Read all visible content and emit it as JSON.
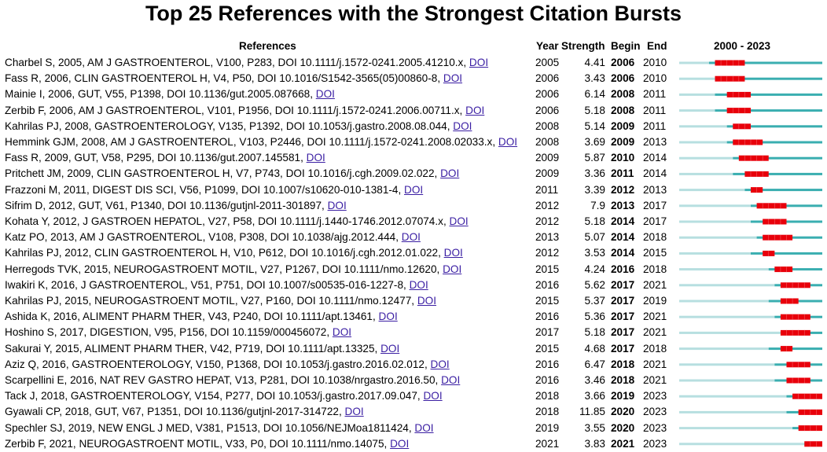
{
  "chart_data": {
    "type": "table",
    "title": "Top 25 References with the Strongest Citation Bursts",
    "headers": {
      "references": "References",
      "year": "Year",
      "strength": "Strength",
      "begin": "Begin",
      "end": "End",
      "range": "2000 - 2023"
    },
    "timeline_range": [
      2000,
      2023
    ],
    "colors": {
      "burst": "#e8000b",
      "active": "#3aaeb0",
      "before": "#b7dfe0"
    },
    "rows": [
      {
        "ref": "Charbel S, 2005, AM J GASTROENTEROL, V100, P283, DOI 10.1111/j.1572-0241.2005.41210.x, ",
        "doi": "DOI",
        "year": 2005,
        "strength": "4.41",
        "begin": 2006,
        "end": 2010
      },
      {
        "ref": "Fass R, 2006, CLIN GASTROENTEROL H, V4, P50, DOI 10.1016/S1542-3565(05)00860-8, ",
        "doi": "DOI",
        "year": 2006,
        "strength": "3.43",
        "begin": 2006,
        "end": 2010
      },
      {
        "ref": "Mainie I, 2006, GUT, V55, P1398, DOI 10.1136/gut.2005.087668, ",
        "doi": "DOI",
        "year": 2006,
        "strength": "6.14",
        "begin": 2008,
        "end": 2011
      },
      {
        "ref": "Zerbib F, 2006, AM J GASTROENTEROL, V101, P1956, DOI 10.1111/j.1572-0241.2006.00711.x, ",
        "doi": "DOI",
        "year": 2006,
        "strength": "5.18",
        "begin": 2008,
        "end": 2011
      },
      {
        "ref": "Kahrilas PJ, 2008, GASTROENTEROLOGY, V135, P1392, DOI 10.1053/j.gastro.2008.08.044, ",
        "doi": "DOI",
        "year": 2008,
        "strength": "5.14",
        "begin": 2009,
        "end": 2011
      },
      {
        "ref": "Hemmink GJM, 2008, AM J GASTROENTEROL, V103, P2446, DOI 10.1111/j.1572-0241.2008.02033.x, ",
        "doi": "DOI",
        "year": 2008,
        "strength": "3.69",
        "begin": 2009,
        "end": 2013
      },
      {
        "ref": "Fass R, 2009, GUT, V58, P295, DOI 10.1136/gut.2007.145581, ",
        "doi": "DOI",
        "year": 2009,
        "strength": "5.87",
        "begin": 2010,
        "end": 2014
      },
      {
        "ref": "Pritchett JM, 2009, CLIN GASTROENTEROL H, V7, P743, DOI 10.1016/j.cgh.2009.02.022, ",
        "doi": "DOI",
        "year": 2009,
        "strength": "3.36",
        "begin": 2011,
        "end": 2014
      },
      {
        "ref": "Frazzoni M, 2011, DIGEST DIS SCI, V56, P1099, DOI 10.1007/s10620-010-1381-4, ",
        "doi": "DOI",
        "year": 2011,
        "strength": "3.39",
        "begin": 2012,
        "end": 2013
      },
      {
        "ref": "Sifrim D, 2012, GUT, V61, P1340, DOI 10.1136/gutjnl-2011-301897, ",
        "doi": "DOI",
        "year": 2012,
        "strength": "7.9",
        "begin": 2013,
        "end": 2017
      },
      {
        "ref": "Kohata Y, 2012, J GASTROEN HEPATOL, V27, P58, DOI 10.1111/j.1440-1746.2012.07074.x, ",
        "doi": "DOI",
        "year": 2012,
        "strength": "5.18",
        "begin": 2014,
        "end": 2017
      },
      {
        "ref": "Katz PO, 2013, AM J GASTROENTEROL, V108, P308, DOI 10.1038/ajg.2012.444, ",
        "doi": "DOI",
        "year": 2013,
        "strength": "5.07",
        "begin": 2014,
        "end": 2018
      },
      {
        "ref": "Kahrilas PJ, 2012, CLIN GASTROENTEROL H, V10, P612, DOI 10.1016/j.cgh.2012.01.022, ",
        "doi": "DOI",
        "year": 2012,
        "strength": "3.53",
        "begin": 2014,
        "end": 2015
      },
      {
        "ref": "Herregods TVK, 2015, NEUROGASTROENT MOTIL, V27, P1267, DOI 10.1111/nmo.12620, ",
        "doi": "DOI",
        "year": 2015,
        "strength": "4.24",
        "begin": 2016,
        "end": 2018
      },
      {
        "ref": "Iwakiri K, 2016, J GASTROENTEROL, V51, P751, DOI 10.1007/s00535-016-1227-8, ",
        "doi": "DOI",
        "year": 2016,
        "strength": "5.62",
        "begin": 2017,
        "end": 2021
      },
      {
        "ref": "Kahrilas PJ, 2015, NEUROGASTROENT MOTIL, V27, P160, DOI 10.1111/nmo.12477, ",
        "doi": "DOI",
        "year": 2015,
        "strength": "5.37",
        "begin": 2017,
        "end": 2019
      },
      {
        "ref": "Ashida K, 2016, ALIMENT PHARM THER, V43, P240, DOI 10.1111/apt.13461, ",
        "doi": "DOI",
        "year": 2016,
        "strength": "5.36",
        "begin": 2017,
        "end": 2021
      },
      {
        "ref": "Hoshino S, 2017, DIGESTION, V95, P156, DOI 10.1159/000456072, ",
        "doi": "DOI",
        "year": 2017,
        "strength": "5.18",
        "begin": 2017,
        "end": 2021
      },
      {
        "ref": "Sakurai Y, 2015, ALIMENT PHARM THER, V42, P719, DOI 10.1111/apt.13325, ",
        "doi": "DOI",
        "year": 2015,
        "strength": "4.68",
        "begin": 2017,
        "end": 2018
      },
      {
        "ref": "Aziz Q, 2016, GASTROENTEROLOGY, V150, P1368, DOI 10.1053/j.gastro.2016.02.012, ",
        "doi": "DOI",
        "year": 2016,
        "strength": "6.47",
        "begin": 2018,
        "end": 2021
      },
      {
        "ref": "Scarpellini E, 2016, NAT REV GASTRO HEPAT, V13, P281, DOI 10.1038/nrgastro.2016.50, ",
        "doi": "DOI",
        "year": 2016,
        "strength": "3.46",
        "begin": 2018,
        "end": 2021
      },
      {
        "ref": "Tack J, 2018, GASTROENTEROLOGY, V154, P277, DOI 10.1053/j.gastro.2017.09.047, ",
        "doi": "DOI",
        "year": 2018,
        "strength": "3.66",
        "begin": 2019,
        "end": 2023
      },
      {
        "ref": "Gyawali CP, 2018, GUT, V67, P1351, DOI 10.1136/gutjnl-2017-314722, ",
        "doi": "DOI",
        "year": 2018,
        "strength": "11.85",
        "begin": 2020,
        "end": 2023
      },
      {
        "ref": "Spechler SJ, 2019, NEW ENGL J MED, V381, P1513, DOI 10.1056/NEJMoa1811424, ",
        "doi": "DOI",
        "year": 2019,
        "strength": "3.55",
        "begin": 2020,
        "end": 2023
      },
      {
        "ref": "Zerbib F, 2021, NEUROGASTROENT MOTIL, V33, P0, DOI 10.1111/nmo.14075, ",
        "doi": "DOI",
        "year": 2021,
        "strength": "3.83",
        "begin": 2021,
        "end": 2023
      }
    ]
  }
}
